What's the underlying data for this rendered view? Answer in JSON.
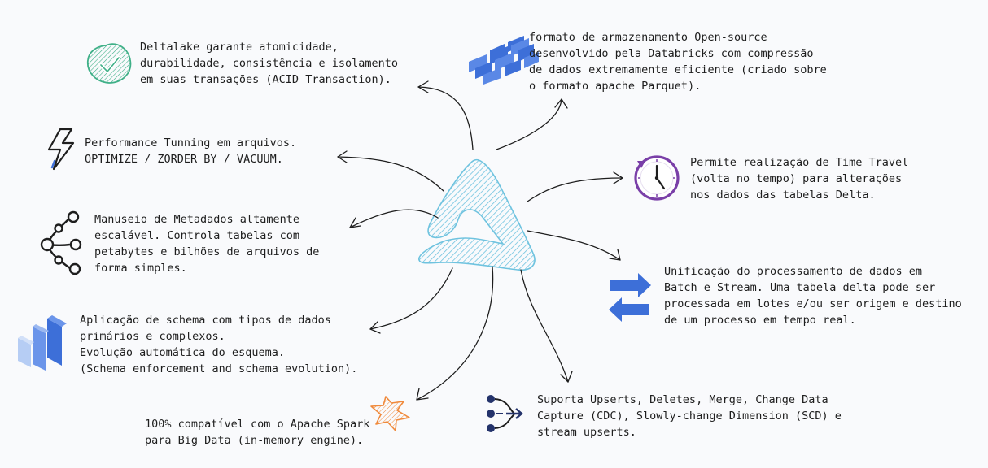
{
  "features": [
    {
      "id": "acid",
      "icon": "check-badge-icon",
      "lines": [
        "Deltalake garante atomicidade,",
        "durabilidade, consistência e isolamento",
        "em suas transações (ACID Transaction)."
      ]
    },
    {
      "id": "parquet",
      "icon": "columnar-storage-icon",
      "lines": [
        "formato de armazenamento Open-source",
        "desenvolvido pela Databricks com compressão",
        "de dados extremamente eficiente (criado sobre",
        "o formato apache Parquet)."
      ]
    },
    {
      "id": "perf",
      "icon": "lightning-icon",
      "lines": [
        "Performance Tunning em arquivos.",
        "OPTIMIZE / ZORDER BY / VACUUM."
      ]
    },
    {
      "id": "timetravel",
      "icon": "clock-icon",
      "lines": [
        "Permite realização de Time Travel",
        "(volta no tempo) para alterações",
        "nos dados das tabelas Delta."
      ]
    },
    {
      "id": "metadata",
      "icon": "tree-nodes-icon",
      "lines": [
        "Manuseio de Metadados altamente",
        "escalável. Controla tabelas com",
        "petabytes e bilhões de arquivos de",
        "forma simples."
      ]
    },
    {
      "id": "unify",
      "icon": "bidirectional-arrows-icon",
      "lines": [
        "Unificação do processamento de dados em",
        "Batch e Stream. Uma tabela delta pode ser",
        "processada em lotes e/ou ser origem e destino",
        "de um processo em tempo real."
      ]
    },
    {
      "id": "schema",
      "icon": "stacked-layers-icon",
      "lines": [
        "Aplicação de schema com tipos de dados",
        "primários e complexos.",
        "Evolução automática do esquema.",
        "(Schema enforcement and schema evolution)."
      ]
    },
    {
      "id": "spark",
      "icon": "spark-star-icon",
      "lines": [
        "100% compatível com o Apache Spark",
        "para Big Data (in-memory engine)."
      ]
    },
    {
      "id": "upserts",
      "icon": "merge-flow-icon",
      "lines": [
        "Suporta Upserts, Deletes, Merge, Change Data",
        "Capture (CDC), Slowly-change Dimension (SCD) e",
        "stream upserts."
      ]
    }
  ],
  "center_icon": "delta-lake-logo-icon",
  "colors": {
    "delta": "#6fc3df",
    "acid": "#40b088",
    "blue": "#3d6fd8",
    "lightblue": "#b6cdf4",
    "clock": "#7a3fa8",
    "spark": "#f08a3c",
    "ink": "#1e1e1e"
  }
}
